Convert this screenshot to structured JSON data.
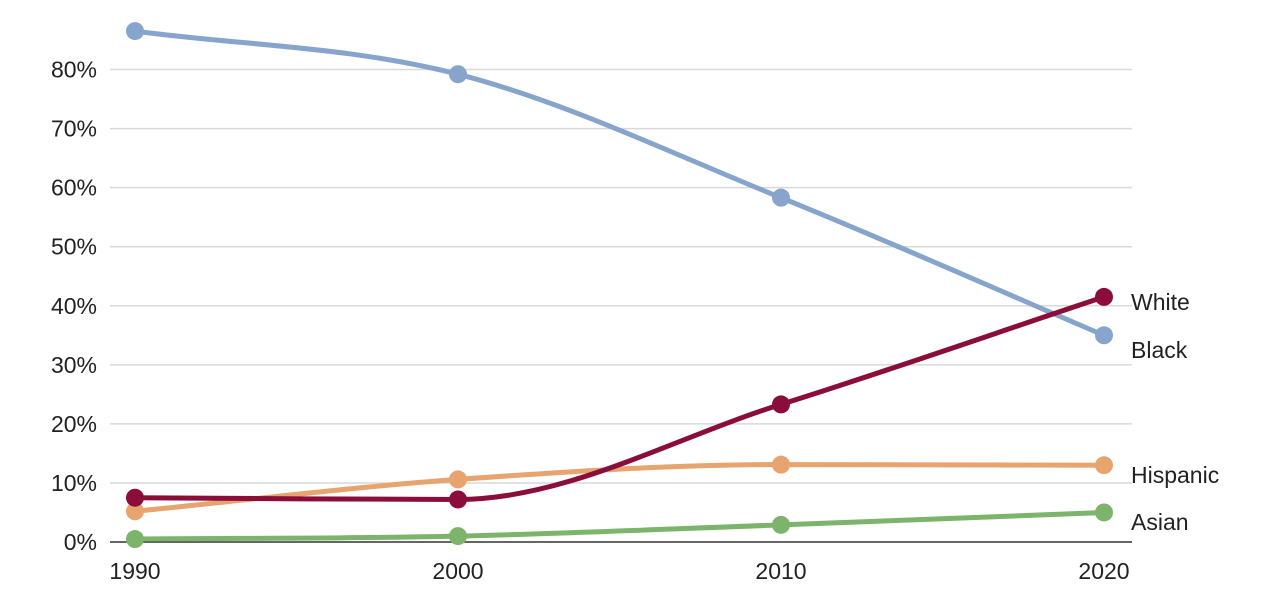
{
  "chart_data": {
    "type": "line",
    "title": "",
    "xlabel": "",
    "ylabel": "",
    "x": [
      1990,
      2000,
      2010,
      2020
    ],
    "x_tick_labels": [
      "1990",
      "2000",
      "2010",
      "2020"
    ],
    "ylim": [
      0,
      88
    ],
    "y_ticks": [
      0,
      10,
      20,
      30,
      40,
      50,
      60,
      70,
      80
    ],
    "y_tick_labels": [
      "0%",
      "10%",
      "20%",
      "30%",
      "40%",
      "50%",
      "60%",
      "70%",
      "80%"
    ],
    "grid": true,
    "legend": "direct labels at right end of lines",
    "series": [
      {
        "name": "Black",
        "color": "#87a4cc",
        "values": [
          86.5,
          79.2,
          58.3,
          35.0
        ]
      },
      {
        "name": "White",
        "color": "#8b0e3a",
        "values": [
          7.5,
          7.2,
          23.3,
          41.5
        ]
      },
      {
        "name": "Hispanic",
        "color": "#e8a46e",
        "values": [
          5.2,
          10.6,
          13.1,
          13.0
        ]
      },
      {
        "name": "Asian",
        "color": "#7db46c",
        "values": [
          0.5,
          1.0,
          2.9,
          5.0
        ]
      }
    ],
    "label_order_top_to_bottom": [
      "White",
      "Black",
      "Hispanic",
      "Asian"
    ]
  }
}
